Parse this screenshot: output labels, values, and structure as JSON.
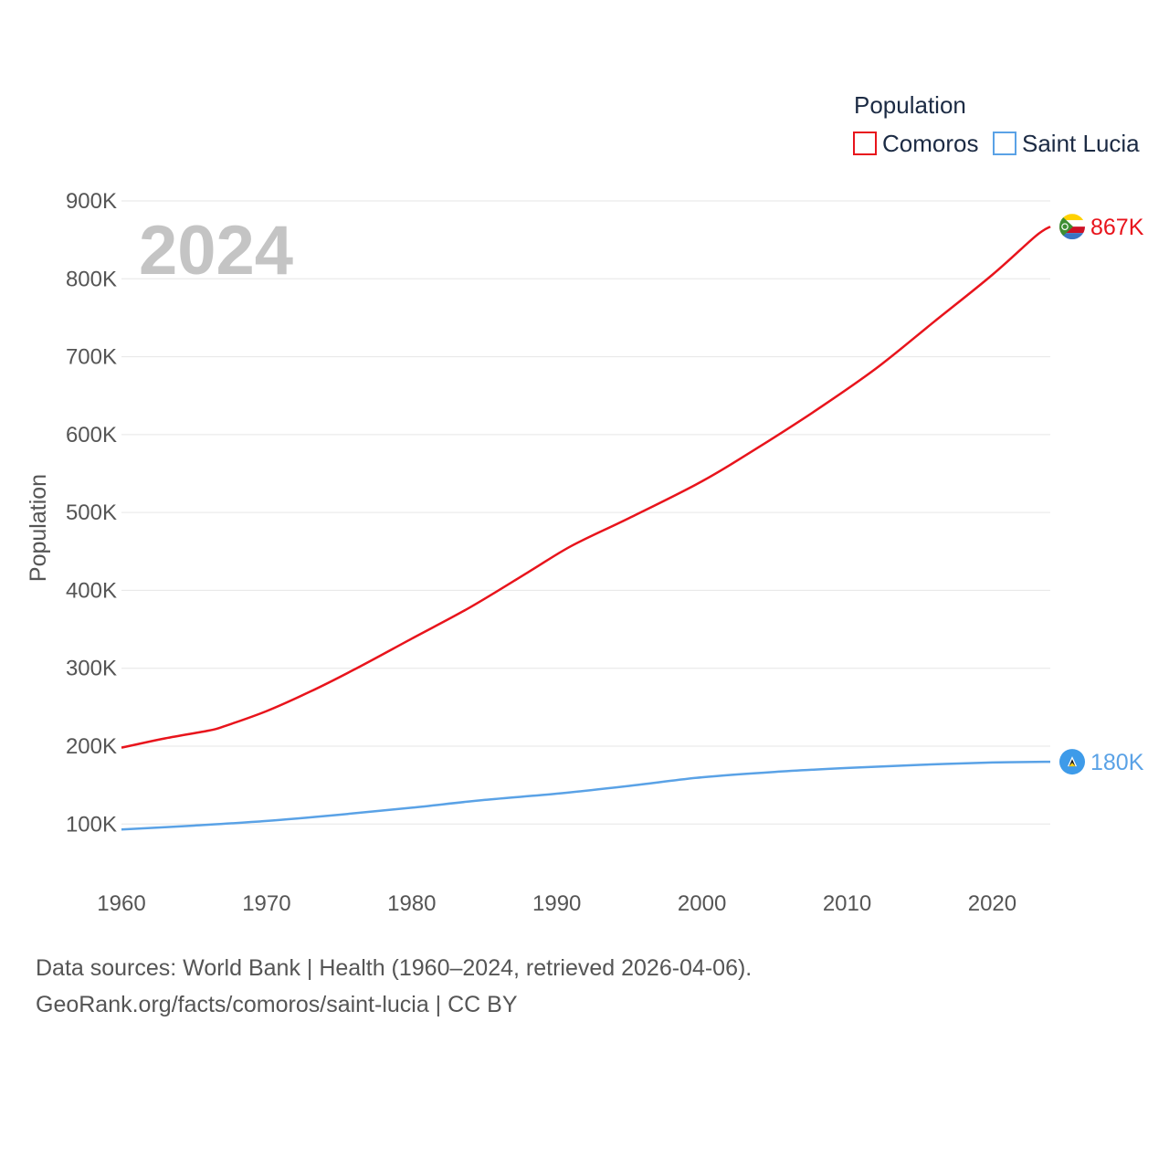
{
  "chart_data": {
    "type": "line",
    "title": "",
    "ylabel": "Population",
    "xlabel": "",
    "year_label": "2024",
    "xlim": [
      1960,
      2024
    ],
    "ylim": [
      30000,
      900000
    ],
    "x_ticks": [
      1960,
      1970,
      1980,
      1990,
      2000,
      2010,
      2020
    ],
    "x_tick_labels": [
      "1960",
      "1970",
      "1980",
      "1990",
      "2000",
      "2010",
      "2020"
    ],
    "y_ticks": [
      100000,
      200000,
      300000,
      400000,
      500000,
      600000,
      700000,
      800000,
      900000
    ],
    "y_tick_labels": [
      "100K",
      "200K",
      "300K",
      "400K",
      "500K",
      "600K",
      "700K",
      "800K",
      "900K"
    ],
    "legend": {
      "title": "Population",
      "position": "top-right"
    },
    "series": [
      {
        "name": "Comoros",
        "color": "#e8141c",
        "end_label": "867K",
        "flag_icon": "comoros-flag-icon",
        "x": [
          1960,
          1963,
          1966,
          1967,
          1970,
          1973,
          1976,
          1980,
          1984,
          1988,
          1991,
          1995,
          2000,
          2004,
          2008,
          2012,
          2016,
          2020,
          2023,
          2024
        ],
        "values": [
          198000,
          210000,
          220000,
          225000,
          245000,
          270000,
          298000,
          338000,
          378000,
          423000,
          457000,
          493000,
          540000,
          585000,
          633000,
          685000,
          745000,
          805000,
          855000,
          867000
        ]
      },
      {
        "name": "Saint Lucia",
        "color": "#5aa2e6",
        "end_label": "180K",
        "flag_icon": "saint-lucia-flag-icon",
        "x": [
          1960,
          1965,
          1970,
          1975,
          1980,
          1985,
          1990,
          1995,
          2000,
          2005,
          2010,
          2015,
          2020,
          2024
        ],
        "values": [
          93000,
          98000,
          104000,
          112000,
          121000,
          131000,
          139000,
          149000,
          160000,
          167000,
          172000,
          176000,
          179000,
          180000
        ]
      }
    ]
  },
  "footer": {
    "line1": "Data sources: World Bank | Health (1960–2024, retrieved 2026-04-06).",
    "line2": "GeoRank.org/facts/comoros/saint-lucia | CC BY"
  }
}
